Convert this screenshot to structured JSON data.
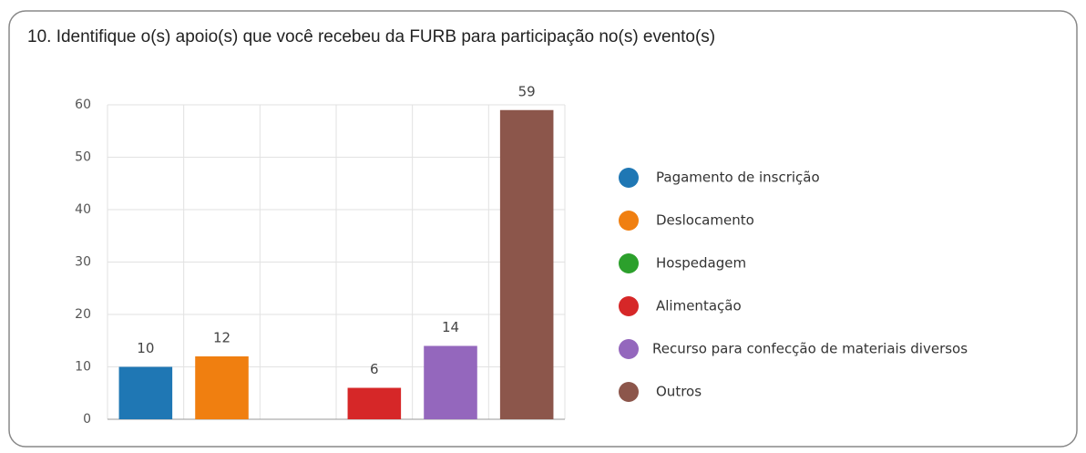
{
  "chart_data": {
    "type": "bar",
    "title": "10.  Identifique o(s) apoio(s) que você recebeu da FURB para participação no(s) evento(s)",
    "categories": [
      "Pagamento de inscrição",
      "Deslocamento",
      "Hospedagem",
      "Alimentação",
      "Recurso para confecção de materiais diversos",
      "Outros"
    ],
    "values": [
      10,
      12,
      0,
      6,
      14,
      59
    ],
    "colors": [
      "#1f77b4",
      "#f07f10",
      "#2ca02c",
      "#d62728",
      "#9467bd",
      "#8c564b"
    ],
    "ylim": [
      0,
      60
    ],
    "yticks": [
      0,
      10,
      20,
      30,
      40,
      50,
      60
    ],
    "grid": true,
    "legend": "right"
  }
}
